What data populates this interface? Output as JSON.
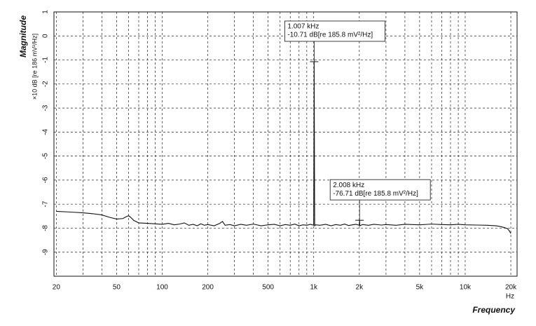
{
  "chart_data": {
    "type": "line",
    "ylabel": "Magnitude",
    "ylabel_units": "×10 dB [re 186 mV²/Hz]",
    "xlabel": "Frequency",
    "xunits": "Hz",
    "xscale": "log",
    "grid": true,
    "xlim": [
      19.3,
      22000
    ],
    "ylim": [
      -10,
      1
    ],
    "yticks": [
      1,
      0,
      -1,
      -2,
      -3,
      -4,
      -5,
      -6,
      -7,
      -8,
      -9
    ],
    "xticks": [
      20,
      50,
      100,
      200,
      500,
      {
        "value": 1000,
        "label": "1k"
      },
      {
        "value": 2000,
        "label": "2k"
      },
      {
        "value": 5000,
        "label": "5k"
      },
      {
        "value": 10000,
        "label": "10k"
      },
      {
        "value": 20000,
        "label": "20k"
      }
    ],
    "xticks_minor": [
      30,
      40,
      60,
      70,
      80,
      90,
      300,
      400,
      600,
      700,
      800,
      900,
      3000,
      4000,
      6000,
      7000,
      8000,
      9000
    ],
    "series": [
      {
        "color": "#111111",
        "x": [
          20,
          25,
          30,
          35,
          40,
          45,
          50,
          55,
          58,
          60,
          62,
          65,
          70,
          80,
          90,
          100,
          110,
          120,
          130,
          140,
          150,
          160,
          170,
          180,
          190,
          200,
          220,
          240,
          250,
          260,
          280,
          300,
          330,
          360,
          400,
          450,
          500,
          550,
          600,
          650,
          700,
          750,
          800,
          850,
          900,
          950,
          980,
          1000,
          1007,
          1015,
          1030,
          1100,
          1200,
          1300,
          1400,
          1500,
          1600,
          1700,
          1800,
          1900,
          2000,
          2008,
          2016,
          2100,
          2300,
          2500,
          2800,
          3000,
          3500,
          4000,
          5000,
          6000,
          7000,
          8000,
          9000,
          10000,
          12000,
          14000,
          16000,
          17000,
          18000,
          19000,
          19500,
          20000
        ],
        "values": [
          -7.3,
          -7.33,
          -7.36,
          -7.4,
          -7.45,
          -7.55,
          -7.62,
          -7.6,
          -7.52,
          -7.48,
          -7.55,
          -7.68,
          -7.78,
          -7.8,
          -7.82,
          -7.84,
          -7.8,
          -7.86,
          -7.83,
          -7.78,
          -7.88,
          -7.84,
          -7.9,
          -7.82,
          -7.88,
          -7.85,
          -7.9,
          -7.8,
          -7.72,
          -7.88,
          -7.85,
          -7.9,
          -7.84,
          -7.88,
          -7.83,
          -7.9,
          -7.86,
          -7.84,
          -7.9,
          -7.85,
          -7.88,
          -7.83,
          -7.9,
          -7.86,
          -7.88,
          -7.84,
          -7.86,
          -7.88,
          -1.071,
          -7.9,
          -7.86,
          -7.88,
          -7.84,
          -7.9,
          -7.85,
          -7.88,
          -7.83,
          -7.89,
          -7.86,
          -7.84,
          -7.88,
          -7.671,
          -7.9,
          -7.85,
          -7.88,
          -7.84,
          -7.87,
          -7.85,
          -7.88,
          -7.84,
          -7.86,
          -7.83,
          -7.85,
          -7.86,
          -7.84,
          -7.86,
          -7.87,
          -7.88,
          -7.9,
          -7.93,
          -7.97,
          -8.02,
          -8.1,
          -8.22
        ]
      }
    ],
    "annotations": [
      {
        "x": 1007,
        "y": -1.071,
        "lines": [
          "1.007 kHz",
          "-10.71 dB[re 185.8 mV²/Hz]"
        ]
      },
      {
        "x": 2008,
        "y": -7.671,
        "lines": [
          "2.008 kHz",
          "-76.71 dB[re 185.8 mV²/Hz]"
        ]
      }
    ]
  }
}
